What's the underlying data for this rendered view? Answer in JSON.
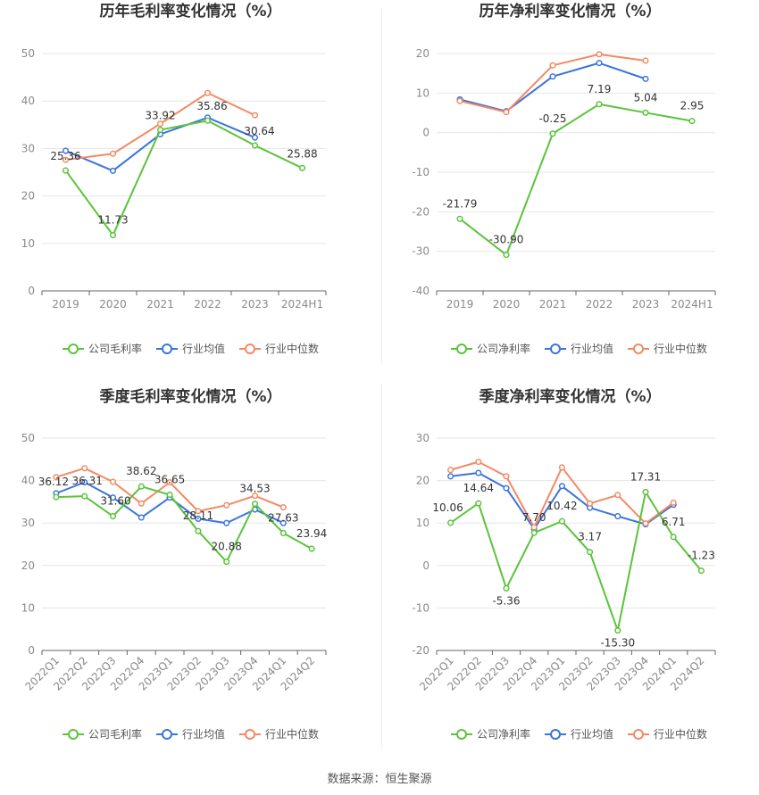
{
  "source_text": "数据来源：恒生聚源",
  "colors": {
    "company": "#5ac43a",
    "industry_avg": "#3b74dc",
    "industry_median": "#f28a63",
    "grid": "#e6e6e6",
    "axis": "#666666"
  },
  "chart_data": [
    {
      "type": "line",
      "title": "历年毛利率变化情况（%）",
      "categories": [
        "2019",
        "2020",
        "2021",
        "2022",
        "2023",
        "2024H1"
      ],
      "ylim": [
        0,
        50
      ],
      "yticks": [
        0,
        10,
        20,
        30,
        40,
        50
      ],
      "grid": true,
      "legend_position": "bottom",
      "series": [
        {
          "name": "公司毛利率",
          "color": "#5ac43a",
          "values": [
            25.36,
            11.73,
            33.92,
            35.86,
            30.64,
            25.88
          ],
          "labels": [
            "25.36",
            "11.73",
            "33.92",
            "35.86",
            "30.64",
            "25.88"
          ]
        },
        {
          "name": "行业均值",
          "color": "#3b74dc",
          "values": [
            29.5,
            25.3,
            33.0,
            36.5,
            32.3,
            null
          ]
        },
        {
          "name": "行业中位数",
          "color": "#f28a63",
          "values": [
            27.6,
            28.9,
            35.2,
            41.7,
            37.0,
            null
          ]
        }
      ]
    },
    {
      "type": "line",
      "title": "历年净利率变化情况（%）",
      "categories": [
        "2019",
        "2020",
        "2021",
        "2022",
        "2023",
        "2024H1"
      ],
      "ylim": [
        -40,
        20
      ],
      "yticks": [
        -40,
        -30,
        -20,
        -10,
        0,
        10,
        20
      ],
      "grid": true,
      "legend_position": "bottom",
      "series": [
        {
          "name": "公司净利率",
          "color": "#5ac43a",
          "values": [
            -21.79,
            -30.9,
            -0.25,
            7.19,
            5.04,
            2.95
          ],
          "labels": [
            "-21.79",
            "-30.90",
            "-0.25",
            "7.19",
            "5.04",
            "2.95"
          ]
        },
        {
          "name": "行业均值",
          "color": "#3b74dc",
          "values": [
            8.4,
            5.4,
            14.2,
            17.6,
            13.6,
            null
          ]
        },
        {
          "name": "行业中位数",
          "color": "#f28a63",
          "values": [
            8.0,
            5.2,
            17.0,
            19.8,
            18.2,
            null
          ]
        }
      ]
    },
    {
      "type": "line",
      "title": "季度毛利率变化情况（%）",
      "categories": [
        "2022Q1",
        "2022Q2",
        "2022Q3",
        "2022Q4",
        "2023Q1",
        "2023Q2",
        "2023Q3",
        "2023Q4",
        "2024Q1",
        "2024Q2"
      ],
      "ylim": [
        0,
        50
      ],
      "yticks": [
        0,
        10,
        20,
        30,
        40,
        50
      ],
      "grid": true,
      "legend_position": "bottom",
      "series": [
        {
          "name": "公司毛利率",
          "color": "#5ac43a",
          "values": [
            36.12,
            36.31,
            31.6,
            38.62,
            36.65,
            28.11,
            20.88,
            34.53,
            27.63,
            23.94
          ],
          "labels": [
            "36.12",
            "36.31",
            "31.60",
            "38.62",
            "36.65",
            "28.11",
            "20.88",
            "34.53",
            "27.63",
            "23.94"
          ]
        },
        {
          "name": "行业均值",
          "color": "#3b74dc",
          "values": [
            37.0,
            39.6,
            36.0,
            31.3,
            36.0,
            31.0,
            30.0,
            33.2,
            30.0,
            null
          ]
        },
        {
          "name": "行业中位数",
          "color": "#f28a63",
          "values": [
            40.8,
            42.9,
            39.7,
            34.6,
            39.6,
            32.8,
            34.2,
            36.4,
            33.7,
            null
          ]
        }
      ]
    },
    {
      "type": "line",
      "title": "季度净利率变化情况（%）",
      "categories": [
        "2022Q1",
        "2022Q2",
        "2022Q3",
        "2022Q4",
        "2023Q1",
        "2023Q2",
        "2023Q3",
        "2023Q4",
        "2024Q1",
        "2024Q2"
      ],
      "ylim": [
        -20,
        30
      ],
      "yticks": [
        -20,
        -10,
        0,
        10,
        20,
        30
      ],
      "grid": true,
      "legend_position": "bottom",
      "series": [
        {
          "name": "公司净利率",
          "color": "#5ac43a",
          "values": [
            10.06,
            14.64,
            -5.36,
            7.7,
            10.42,
            3.17,
            -15.3,
            17.31,
            6.71,
            -1.23
          ],
          "labels": [
            "10.06",
            "14.64",
            "-5.36",
            "7.70",
            "10.42",
            "3.17",
            "-15.30",
            "17.31",
            "6.71",
            "-1.23"
          ]
        },
        {
          "name": "行业均值",
          "color": "#3b74dc",
          "values": [
            21.0,
            21.8,
            18.2,
            8.6,
            18.7,
            13.6,
            11.6,
            9.7,
            14.3,
            null
          ]
        },
        {
          "name": "行业中位数",
          "color": "#f28a63",
          "values": [
            22.5,
            24.4,
            21.0,
            9.0,
            23.1,
            14.6,
            16.6,
            9.9,
            14.8,
            null
          ]
        }
      ]
    }
  ]
}
